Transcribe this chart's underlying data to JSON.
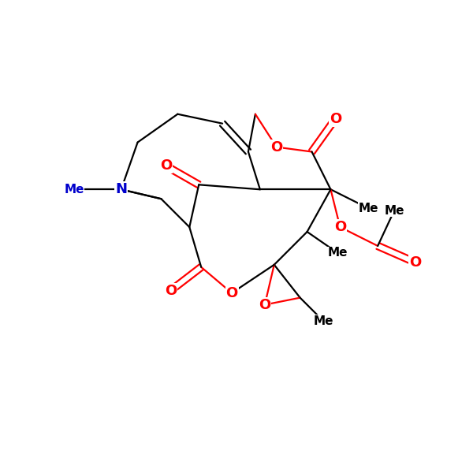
{
  "bg": "#ffffff",
  "bw": 1.6,
  "fig": [
    6.0,
    6.0
  ],
  "xlim": [
    0.0,
    10.0
  ],
  "ylim": [
    0.0,
    10.0
  ]
}
